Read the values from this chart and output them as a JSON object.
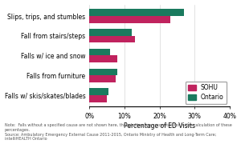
{
  "categories": [
    "Slips, trips, and stumbles",
    "Fall from stairs/steps",
    "Falls w/ ice and snow",
    "Falls from furniture",
    "Falls w/ skis/skates/blades"
  ],
  "sohu_values": [
    23,
    13,
    8,
    7.5,
    5
  ],
  "ontario_values": [
    27,
    12,
    6,
    8,
    5.5
  ],
  "sohu_color": "#c0235e",
  "ontario_color": "#1a7a5e",
  "xlabel": "Percentage of ED Visits",
  "xlim": [
    0,
    40
  ],
  "xticks": [
    0,
    10,
    20,
    30,
    40
  ],
  "xticklabels": [
    "0%",
    "10%",
    "20%",
    "30%",
    "40%"
  ],
  "legend_labels": [
    "SOHU",
    "Ontario"
  ],
  "note_line1": "Note:  Falls without a specified cause are not shown here, though they are accounted for in the calculation of these percentages.",
  "note_line2": "Source: Ambulatory Emergency External Cause 2011-2015, Ontario Ministry of Health and Long-Term Care; intelliHEALTH Ontario",
  "bar_height": 0.35,
  "label_fontsize": 5.5,
  "tick_fontsize": 5.5,
  "legend_fontsize": 5.5,
  "note_fontsize": 3.5
}
